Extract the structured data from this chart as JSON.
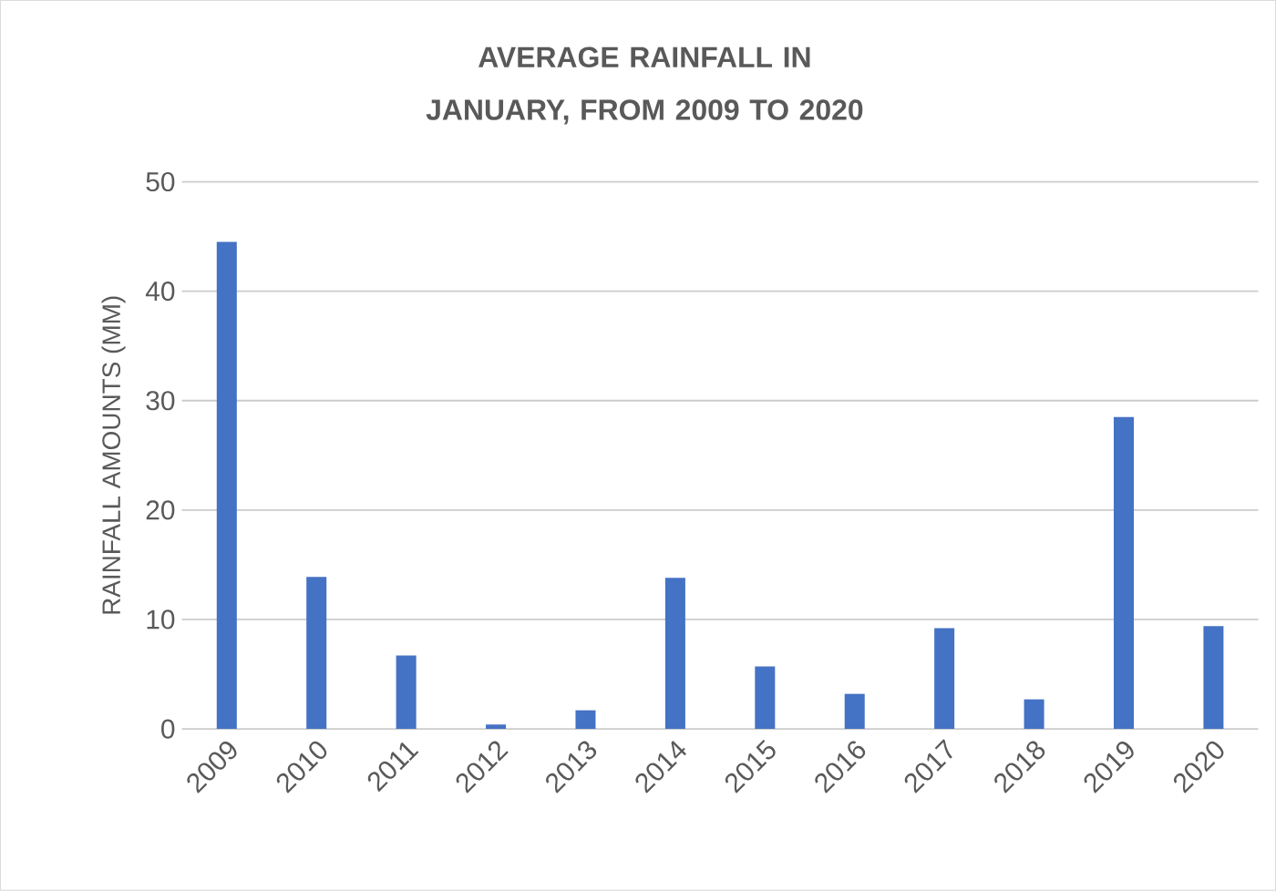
{
  "chart_data": {
    "type": "bar",
    "title": "AVERAGE RAINFALL IN JANUARY, FROM 2009 TO 2020",
    "ylabel": "RAINFALL AMOUNTS (MM)",
    "categories": [
      "2009",
      "2010",
      "2011",
      "2012",
      "2013",
      "2014",
      "2015",
      "2016",
      "2017",
      "2018",
      "2019",
      "2020"
    ],
    "values": [
      44.5,
      13.9,
      6.7,
      0.4,
      1.7,
      13.8,
      5.7,
      3.2,
      9.2,
      2.7,
      28.5,
      9.4
    ],
    "color": "#4472c4",
    "ylim": [
      0,
      50
    ],
    "yticks": [
      0,
      10,
      20,
      30,
      40,
      50
    ],
    "grid": "y"
  }
}
